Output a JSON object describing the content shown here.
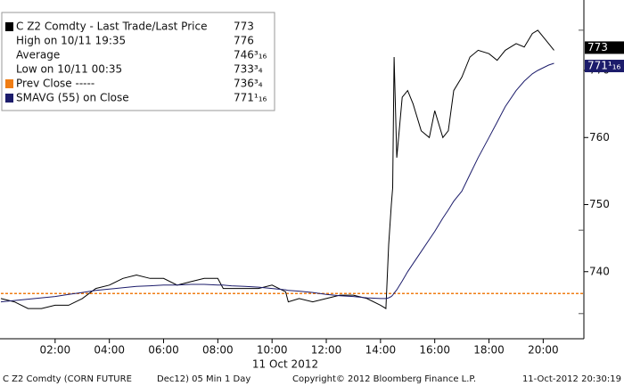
{
  "chart_data": {
    "type": "line",
    "x": [
      0,
      0.5,
      1.0,
      1.5,
      2.0,
      2.5,
      3.0,
      3.5,
      4.0,
      4.5,
      5.0,
      5.5,
      6.0,
      6.5,
      7.0,
      7.5,
      8.0,
      8.2,
      8.5,
      9.0,
      9.5,
      10.0,
      10.5,
      10.6,
      11.0,
      11.5,
      12.0,
      12.5,
      13.0,
      13.5,
      14.0,
      14.2,
      14.3,
      14.4,
      14.45,
      14.5,
      14.6,
      14.8,
      15.0,
      15.2,
      15.5,
      15.8,
      16.0,
      16.3,
      16.5,
      16.7,
      17.0,
      17.3,
      17.6,
      18.0,
      18.3,
      18.6,
      19.0,
      19.3,
      19.6,
      19.8,
      20.0,
      20.2,
      20.4
    ],
    "series": [
      {
        "name": "C Z2 Comdty - Last Trade/Last Price",
        "color": "#000000",
        "values": [
          736,
          735.5,
          734.5,
          734.5,
          735,
          735,
          736,
          737.5,
          738,
          739,
          739.5,
          739,
          739,
          738,
          738.5,
          739,
          739,
          737.5,
          737.5,
          737.5,
          737.5,
          738,
          737,
          735.5,
          736,
          735.5,
          736,
          736.5,
          736.5,
          736,
          735,
          734.5,
          744,
          750,
          752.5,
          772,
          757,
          766,
          767,
          765,
          761,
          760,
          764,
          760,
          761,
          767,
          769,
          772,
          773,
          772.5,
          771.5,
          773,
          774,
          773.5,
          775.5,
          776,
          775,
          774,
          773
        ]
      },
      {
        "name": "SMAVG (55) on Close",
        "color": "#1c1c6b",
        "values": [
          735.5,
          735.7,
          735.9,
          736.1,
          736.3,
          736.6,
          736.9,
          737.2,
          737.4,
          737.6,
          737.8,
          737.9,
          738,
          738,
          738.1,
          738.1,
          738,
          738,
          737.9,
          737.8,
          737.7,
          737.5,
          737.3,
          737.2,
          737.1,
          736.9,
          736.6,
          736.4,
          736.3,
          736.1,
          736,
          736,
          736.1,
          736.3,
          736.5,
          736.8,
          737.3,
          738.6,
          740,
          741.2,
          743,
          744.8,
          746,
          748,
          749.2,
          750.5,
          752,
          754.5,
          757,
          760,
          762.3,
          764.6,
          767,
          768.4,
          769.5,
          770,
          770.4,
          770.8,
          771.0625
        ]
      }
    ],
    "legend": [
      {
        "label": "C Z2 Comdty - Last Trade/Last Price",
        "value": 773,
        "value_label": "773"
      },
      {
        "label": "High on 10/11 19:35",
        "value": 776,
        "value_label": "776"
      },
      {
        "label": "Average",
        "value": 746.1875,
        "value_label": "746³₁₆"
      },
      {
        "label": "Low on 10/11 00:35",
        "value": 733.75,
        "value_label": "733³₄"
      },
      {
        "label": "Prev Close -----",
        "value": 736.75,
        "value_label": "736³₄",
        "color": "#f07d14"
      },
      {
        "label": "SMAVG (55) on Close",
        "value": 771.0625,
        "value_label": "771¹₁₆"
      }
    ],
    "xlim": [
      0,
      21.5
    ],
    "xticks": [
      {
        "value": 2,
        "label": "02:00"
      },
      {
        "value": 4,
        "label": "04:00"
      },
      {
        "value": 6,
        "label": "06:00"
      },
      {
        "value": 8,
        "label": "08:00"
      },
      {
        "value": 10,
        "label": "10:00"
      },
      {
        "value": 12,
        "label": "12:00"
      },
      {
        "value": 14,
        "label": "14:00"
      },
      {
        "value": 16,
        "label": "16:00"
      },
      {
        "value": 18,
        "label": "18:00"
      },
      {
        "value": 20,
        "label": "20:00"
      }
    ],
    "x_label": "11 Oct 2012",
    "ylim": [
      730,
      780.5
    ],
    "yticks": [
      740,
      750,
      760,
      770
    ],
    "footer": [
      "C Z2 Comdty (CORN FUTURE",
      "Dec12) 05 Min 1 Day",
      "Copyright© 2012 Bloomberg Finance L.P.",
      "11-Oct-2012 20:30:19"
    ]
  }
}
